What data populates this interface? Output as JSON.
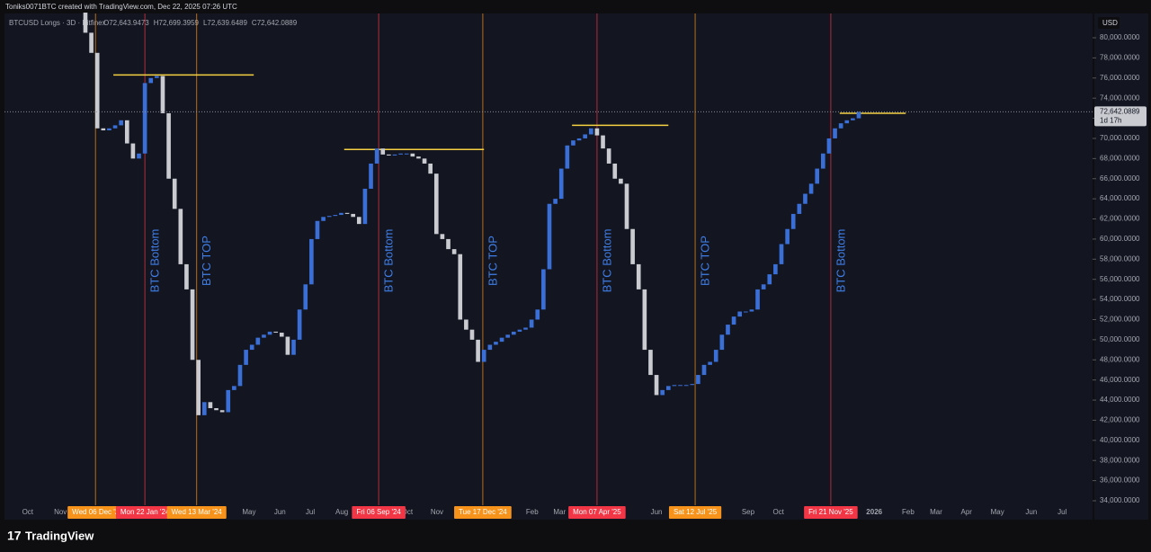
{
  "header": {
    "credit": "Toniks0071BTC created with TradingView.com, Dec 22, 2025 07:26 UTC",
    "logo": "TradingView"
  },
  "chart_data": {
    "type": "candlestick",
    "symbol": "BTCUSD Longs · 3D · Bitfinex",
    "ohlc": [
      "O72,643.9473",
      "H72,699.3959",
      "L72,639.6489",
      "C72,642.0889"
    ],
    "currency": "USD",
    "up_color": "#3a6fd8",
    "down_color": "#c9cbd1",
    "first_open": 82500,
    "closes": [
      80500,
      78500,
      71000,
      70800,
      71000,
      71300,
      71800,
      69500,
      68000,
      68500,
      75500,
      76000,
      76200,
      72500,
      66000,
      63000,
      57500,
      55000,
      48000,
      42500,
      43800,
      43200,
      43000,
      42800,
      45000,
      45400,
      47500,
      49000,
      49500,
      50200,
      50500,
      50800,
      50700,
      50300,
      48500,
      50000,
      53000,
      55500,
      60000,
      61800,
      62200,
      62300,
      62400,
      62600,
      62500,
      62200,
      61500,
      65000,
      67500,
      69000,
      68400,
      68300,
      68400,
      68500,
      68500,
      68200,
      68000,
      67500,
      66500,
      60500,
      60000,
      59000,
      58500,
      52000,
      51000,
      50000,
      47800,
      49000,
      49500,
      49800,
      50200,
      50500,
      50800,
      51000,
      51200,
      52000,
      53000,
      57000,
      63500,
      64000,
      67000,
      69300,
      69800,
      70000,
      70400,
      71000,
      70300,
      69000,
      67500,
      66000,
      65500,
      61000,
      57500,
      55000,
      49000,
      46500,
      44500,
      45000,
      45400,
      45500,
      45500,
      45500,
      45600,
      46500,
      47500,
      47800,
      49000,
      50500,
      51500,
      52300,
      52800,
      52800,
      53000,
      55000,
      55500,
      56500,
      57500,
      59500,
      61000,
      62500,
      63500,
      64500,
      65500,
      67000,
      68500,
      70000,
      71000,
      71500,
      71800,
      72000,
      72642.0889
    ],
    "last_price": {
      "value": 72642.0889,
      "label": "72,642.0889"
    },
    "countdown": "1d 17h",
    "xlim": [
      -13.6,
      169.3
    ],
    "xticks": [
      {
        "value": -9.7,
        "label": "Oct"
      },
      {
        "value": -4.2,
        "label": "Nov"
      },
      {
        "value": 27.5,
        "label": "May"
      },
      {
        "value": 32.7,
        "label": "Jun"
      },
      {
        "value": 37.8,
        "label": "Jul"
      },
      {
        "value": 43.1,
        "label": "Aug"
      },
      {
        "value": 54.1,
        "label": "Oct"
      },
      {
        "value": 59.1,
        "label": "Nov"
      },
      {
        "value": 75.1,
        "label": "Feb"
      },
      {
        "value": 79.7,
        "label": "Mar"
      },
      {
        "value": 96,
        "label": "Jun"
      },
      {
        "value": 111.4,
        "label": "Sep"
      },
      {
        "value": 116.5,
        "label": "Oct"
      },
      {
        "value": 132.6,
        "label": "2026"
      },
      {
        "value": 138.3,
        "label": "Feb"
      },
      {
        "value": 143,
        "label": "Mar"
      },
      {
        "value": 148.1,
        "label": "Apr"
      },
      {
        "value": 153.3,
        "label": "May"
      },
      {
        "value": 159,
        "label": "Jun"
      },
      {
        "value": 164.2,
        "label": "Jul"
      }
    ],
    "ylim": [
      32125,
      82412
    ],
    "yticks": [
      {
        "value": 34000,
        "label": "34,000.0000"
      },
      {
        "value": 36000,
        "label": "36,000.0000"
      },
      {
        "value": 38000,
        "label": "38,000.0000"
      },
      {
        "value": 40000,
        "label": "40,000.0000"
      },
      {
        "value": 42000,
        "label": "42,000.0000"
      },
      {
        "value": 44000,
        "label": "44,000.0000"
      },
      {
        "value": 46000,
        "label": "46,000.0000"
      },
      {
        "value": 48000,
        "label": "48,000.0000"
      },
      {
        "value": 50000,
        "label": "50,000.0000"
      },
      {
        "value": 52000,
        "label": "52,000.0000"
      },
      {
        "value": 54000,
        "label": "54,000.0000"
      },
      {
        "value": 56000,
        "label": "56,000.0000"
      },
      {
        "value": 58000,
        "label": "58,000.0000"
      },
      {
        "value": 60000,
        "label": "60,000.0000"
      },
      {
        "value": 62000,
        "label": "62,000.0000"
      },
      {
        "value": 64000,
        "label": "64,000.0000"
      },
      {
        "value": 66000,
        "label": "66,000.0000"
      },
      {
        "value": 68000,
        "label": "68,000.0000"
      },
      {
        "value": 70000,
        "label": "70,000.0000"
      },
      {
        "value": 72000,
        "label": "72,000.0000"
      },
      {
        "value": 74000,
        "label": "74,000.0000"
      },
      {
        "value": 76000,
        "label": "76,000.0000"
      },
      {
        "value": 78000,
        "label": "78,000.0000"
      },
      {
        "value": 80000,
        "label": "80,000.0000"
      }
    ],
    "events": [
      {
        "x": 1.7,
        "label": "Wed 06 Dec '2",
        "color": "#f7931a"
      },
      {
        "x": 10,
        "label": "Mon 22 Jan '24",
        "color": "#f23645",
        "note": "BTC Bottom"
      },
      {
        "x": 18.7,
        "label": "Wed 13 Mar '24",
        "color": "#f7931a",
        "note": "BTC TOP"
      },
      {
        "x": 49.3,
        "label": "Fri 06 Sep '24",
        "color": "#f23645",
        "note": "BTC Bottom"
      },
      {
        "x": 66.8,
        "label": "Tue 17 Dec '24",
        "color": "#f7931a",
        "note": "BTC TOP"
      },
      {
        "x": 86,
        "label": "Mon 07 Apr '25",
        "color": "#f23645",
        "note": "BTC Bottom"
      },
      {
        "x": 102.5,
        "label": "Sat 12 Jul '25",
        "color": "#f7931a",
        "note": "BTC TOP"
      },
      {
        "x": 125.3,
        "label": "Fri 21 Nov '25",
        "color": "#f23645",
        "note": "BTC Bottom"
      }
    ],
    "levels": [
      {
        "x": [
          4.7,
          28.3
        ],
        "y": 76300
      },
      {
        "x": [
          43.5,
          67
        ],
        "y": 68900
      },
      {
        "x": [
          81.8,
          98
        ],
        "y": 71300
      },
      {
        "x": [
          126.8,
          137.9
        ],
        "y": 72500
      }
    ],
    "level_color": "#f5d142"
  }
}
